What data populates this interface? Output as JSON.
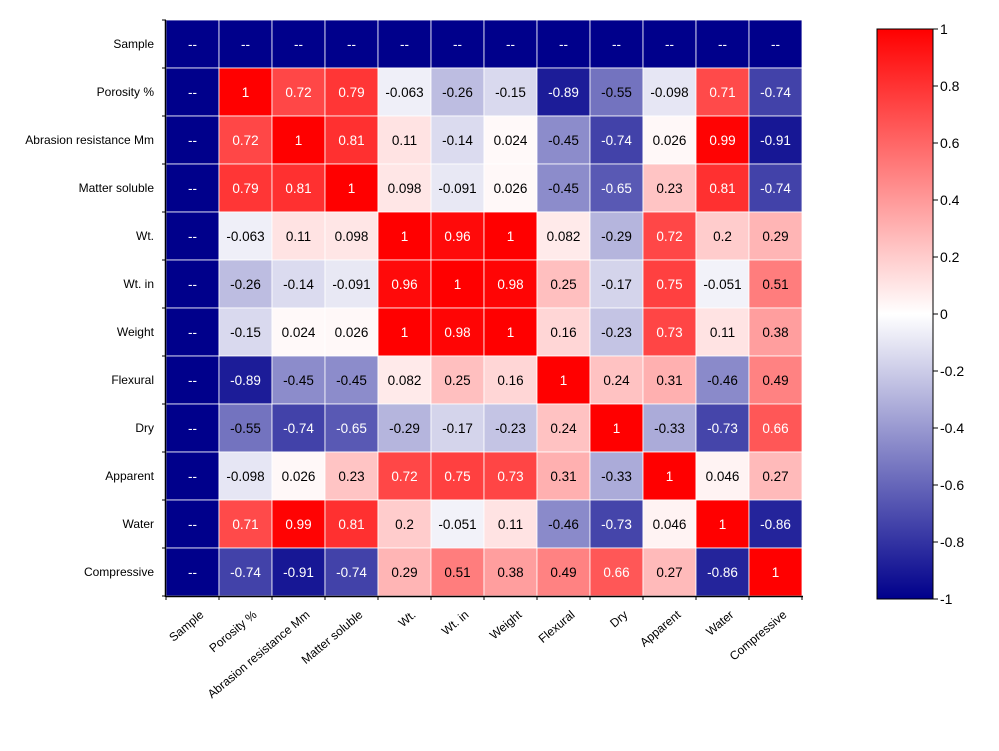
{
  "chart_data": {
    "type": "heatmap",
    "title": "",
    "labels": [
      "Sample",
      "Porosity %",
      "Abrasion resistance Mm",
      "Matter soluble",
      "Wt.",
      "Wt. in",
      "Weight",
      "Flexural",
      "Dry",
      "Apparent",
      "Water",
      "Compressive"
    ],
    "rows": [
      [
        "--",
        "--",
        "--",
        "--",
        "--",
        "--",
        "--",
        "--",
        "--",
        "--",
        "--",
        "--"
      ],
      [
        "--",
        "1",
        "0.72",
        "0.79",
        "-0.063",
        "-0.26",
        "-0.15",
        "-0.89",
        "-0.55",
        "-0.098",
        "0.71",
        "-0.74"
      ],
      [
        "--",
        "0.72",
        "1",
        "0.81",
        "0.11",
        "-0.14",
        "0.024",
        "-0.45",
        "-0.74",
        "0.026",
        "0.99",
        "-0.91"
      ],
      [
        "--",
        "0.79",
        "0.81",
        "1",
        "0.098",
        "-0.091",
        "0.026",
        "-0.45",
        "-0.65",
        "0.23",
        "0.81",
        "-0.74"
      ],
      [
        "--",
        "-0.063",
        "0.11",
        "0.098",
        "1",
        "0.96",
        "1",
        "0.082",
        "-0.29",
        "0.72",
        "0.2",
        "0.29"
      ],
      [
        "--",
        "-0.26",
        "-0.14",
        "-0.091",
        "0.96",
        "1",
        "0.98",
        "0.25",
        "-0.17",
        "0.75",
        "-0.051",
        "0.51"
      ],
      [
        "--",
        "-0.15",
        "0.024",
        "0.026",
        "1",
        "0.98",
        "1",
        "0.16",
        "-0.23",
        "0.73",
        "0.11",
        "0.38"
      ],
      [
        "--",
        "-0.89",
        "-0.45",
        "-0.45",
        "0.082",
        "0.25",
        "0.16",
        "1",
        "0.24",
        "0.31",
        "-0.46",
        "0.49"
      ],
      [
        "--",
        "-0.55",
        "-0.74",
        "-0.65",
        "-0.29",
        "-0.17",
        "-0.23",
        "0.24",
        "1",
        "-0.33",
        "-0.73",
        "0.66"
      ],
      [
        "--",
        "-0.098",
        "0.026",
        "0.23",
        "0.72",
        "0.75",
        "0.73",
        "0.31",
        "-0.33",
        "1",
        "0.046",
        "0.27"
      ],
      [
        "--",
        "0.71",
        "0.99",
        "0.81",
        "0.2",
        "-0.051",
        "0.11",
        "-0.46",
        "-0.73",
        "0.046",
        "1",
        "-0.86"
      ],
      [
        "--",
        "-0.74",
        "-0.91",
        "-0.74",
        "0.29",
        "0.51",
        "0.38",
        "0.49",
        "0.66",
        "0.27",
        "-0.86",
        "1"
      ]
    ],
    "colorbar": {
      "range": [
        -1,
        1
      ],
      "ticks": [
        "1",
        "0.8",
        "0.6",
        "0.4",
        "0.2",
        "0",
        "-0.2",
        "-0.4",
        "-0.6",
        "-0.8",
        "-1"
      ],
      "tick_values": [
        1,
        0.8,
        0.6,
        0.4,
        0.2,
        0,
        -0.2,
        -0.4,
        -0.6,
        -0.8,
        -1
      ],
      "colors": {
        "low": "#00008b",
        "mid": "#ffffff",
        "high": "#ff0000",
        "missing": "#00008b"
      }
    }
  }
}
